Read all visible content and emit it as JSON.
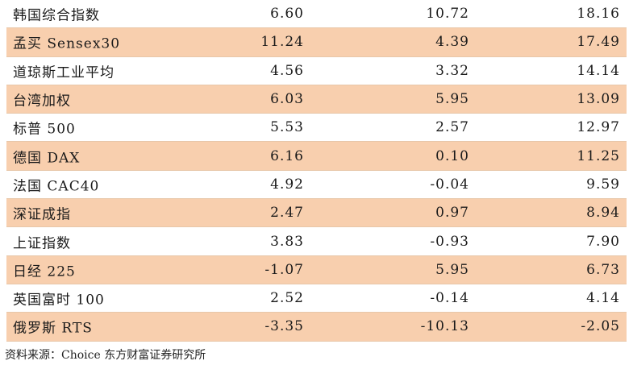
{
  "rows": [
    {
      "name": "韩国综合指数",
      "v1": "6.60",
      "v2": "10.72",
      "v3": "18.16"
    },
    {
      "name": "孟买 Sensex30",
      "v1": "11.24",
      "v2": "4.39",
      "v3": "17.49"
    },
    {
      "name": "道琼斯工业平均",
      "v1": "4.56",
      "v2": "3.32",
      "v3": "14.14"
    },
    {
      "name": "台湾加权",
      "v1": "6.03",
      "v2": "5.95",
      "v3": "13.09"
    },
    {
      "name": "标普 500",
      "v1": "5.53",
      "v2": "2.57",
      "v3": "12.97"
    },
    {
      "name": "德国 DAX",
      "v1": "6.16",
      "v2": "0.10",
      "v3": "11.25"
    },
    {
      "name": "法国 CAC40",
      "v1": "4.92",
      "v2": "-0.04",
      "v3": "9.59"
    },
    {
      "name": "深证成指",
      "v1": "2.47",
      "v2": "0.97",
      "v3": "8.94"
    },
    {
      "name": "上证指数",
      "v1": "3.83",
      "v2": "-0.93",
      "v3": "7.90"
    },
    {
      "name": "日经 225",
      "v1": "-1.07",
      "v2": "5.95",
      "v3": "6.73"
    },
    {
      "name": "英国富时 100",
      "v1": "2.52",
      "v2": "-0.14",
      "v3": "4.14"
    },
    {
      "name": "俄罗斯 RTS",
      "v1": "-3.35",
      "v2": "-10.13",
      "v3": "-2.05"
    }
  ],
  "source": "资料来源：Choice 东方财富证券研究所",
  "colors": {
    "stripe": "#f8cfae",
    "text": "#1a1a1a"
  }
}
